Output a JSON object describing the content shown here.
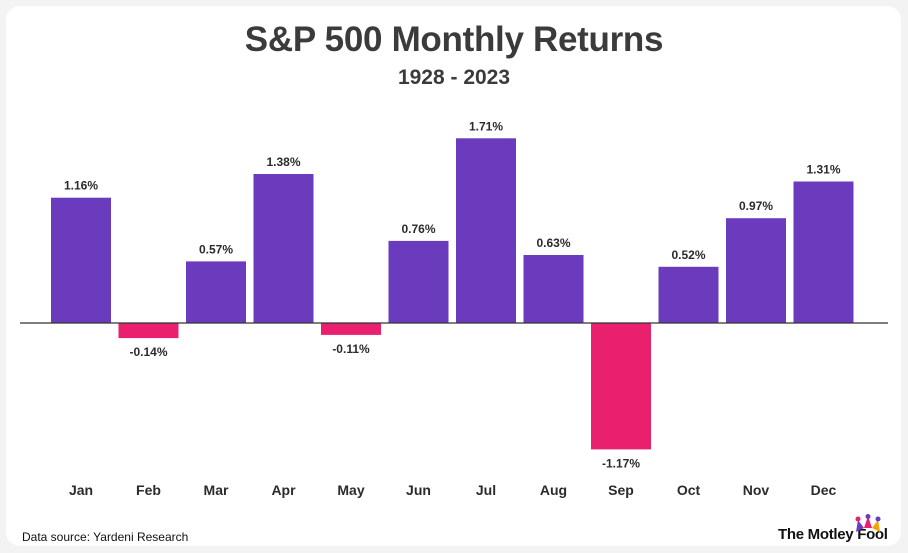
{
  "chart_data": {
    "type": "bar",
    "title": "S&P 500 Monthly Returns",
    "subtitle": "1928 - 2023",
    "categories": [
      "Jan",
      "Feb",
      "Mar",
      "Apr",
      "May",
      "Jun",
      "Jul",
      "Aug",
      "Sep",
      "Oct",
      "Nov",
      "Dec"
    ],
    "values": [
      1.16,
      -0.14,
      0.57,
      1.38,
      -0.11,
      0.76,
      1.71,
      0.63,
      -1.17,
      0.52,
      0.97,
      1.31
    ],
    "labels": [
      "1.16%",
      "-0.14%",
      "0.57%",
      "1.38%",
      "-0.11%",
      "0.76%",
      "1.71%",
      "0.63%",
      "-1.17%",
      "0.52%",
      "0.97%",
      "1.31%"
    ],
    "xlabel": "",
    "ylabel": "",
    "grid": false,
    "legend": "none",
    "colors": {
      "positive": "#6a3bbd",
      "negative": "#e8206e",
      "baseline": "#333333"
    }
  },
  "footer": {
    "source": "Data source: Yardeni Research",
    "brand": "The Motley Fool"
  }
}
